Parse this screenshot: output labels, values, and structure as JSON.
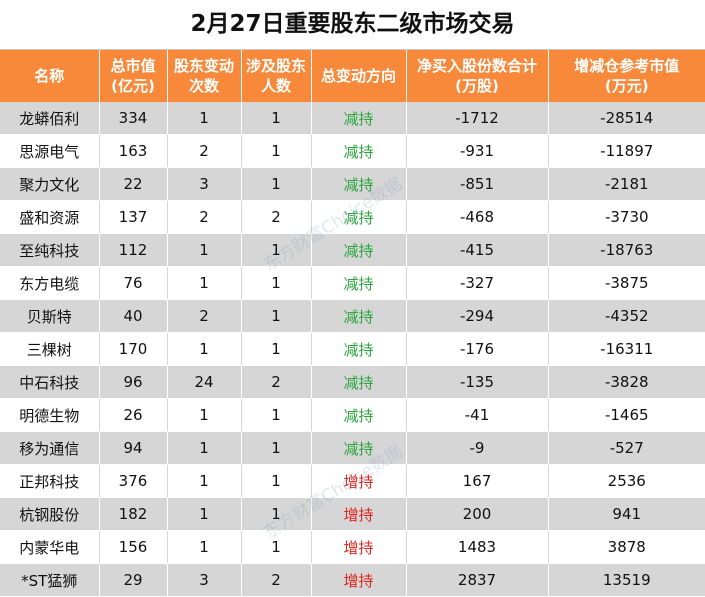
{
  "title": "2月27日重要股东二级市场交易",
  "headers": [
    "名称",
    "总市值\n(亿元)",
    "股东变动\n次数",
    "涉及股东\n人数",
    "总变动方向",
    "净买入股份数合计\n(万股)",
    "增减仓参考市值\n(万元)"
  ],
  "rows": [
    {
      "name": "龙蟒佰利",
      "mcap": "334",
      "changes": "1",
      "holders": "1",
      "direction": "减持",
      "net_shares": "-1712",
      "ref_value": "-28514"
    },
    {
      "name": "思源电气",
      "mcap": "163",
      "changes": "2",
      "holders": "1",
      "direction": "减持",
      "net_shares": "-931",
      "ref_value": "-11897"
    },
    {
      "name": "聚力文化",
      "mcap": "22",
      "changes": "3",
      "holders": "1",
      "direction": "减持",
      "net_shares": "-851",
      "ref_value": "-2181"
    },
    {
      "name": "盛和资源",
      "mcap": "137",
      "changes": "2",
      "holders": "2",
      "direction": "减持",
      "net_shares": "-468",
      "ref_value": "-3730"
    },
    {
      "name": "至纯科技",
      "mcap": "112",
      "changes": "1",
      "holders": "1",
      "direction": "减持",
      "net_shares": "-415",
      "ref_value": "-18763"
    },
    {
      "name": "东方电缆",
      "mcap": "76",
      "changes": "1",
      "holders": "1",
      "direction": "减持",
      "net_shares": "-327",
      "ref_value": "-3875"
    },
    {
      "name": "贝斯特",
      "mcap": "40",
      "changes": "2",
      "holders": "1",
      "direction": "减持",
      "net_shares": "-294",
      "ref_value": "-4352"
    },
    {
      "name": "三棵树",
      "mcap": "170",
      "changes": "1",
      "holders": "1",
      "direction": "减持",
      "net_shares": "-176",
      "ref_value": "-16311"
    },
    {
      "name": "中石科技",
      "mcap": "96",
      "changes": "24",
      "holders": "2",
      "direction": "减持",
      "net_shares": "-135",
      "ref_value": "-3828"
    },
    {
      "name": "明德生物",
      "mcap": "26",
      "changes": "1",
      "holders": "1",
      "direction": "减持",
      "net_shares": "-41",
      "ref_value": "-1465"
    },
    {
      "name": "移为通信",
      "mcap": "94",
      "changes": "1",
      "holders": "1",
      "direction": "减持",
      "net_shares": "-9",
      "ref_value": "-527"
    },
    {
      "name": "正邦科技",
      "mcap": "376",
      "changes": "1",
      "holders": "1",
      "direction": "增持",
      "net_shares": "167",
      "ref_value": "2536"
    },
    {
      "name": "杭钢股份",
      "mcap": "182",
      "changes": "1",
      "holders": "1",
      "direction": "增持",
      "net_shares": "200",
      "ref_value": "941"
    },
    {
      "name": "内蒙华电",
      "mcap": "156",
      "changes": "1",
      "holders": "1",
      "direction": "增持",
      "net_shares": "1483",
      "ref_value": "3878"
    },
    {
      "name": "*ST猛狮",
      "mcap": "29",
      "changes": "3",
      "holders": "2",
      "direction": "增持",
      "net_shares": "2837",
      "ref_value": "13519"
    }
  ],
  "watermark": "东方财富Choice数据",
  "colors": {
    "header": "#f8893a",
    "decrease": "#2aa43c",
    "increase": "#e0231b",
    "stripe": "#d6d6d6"
  }
}
